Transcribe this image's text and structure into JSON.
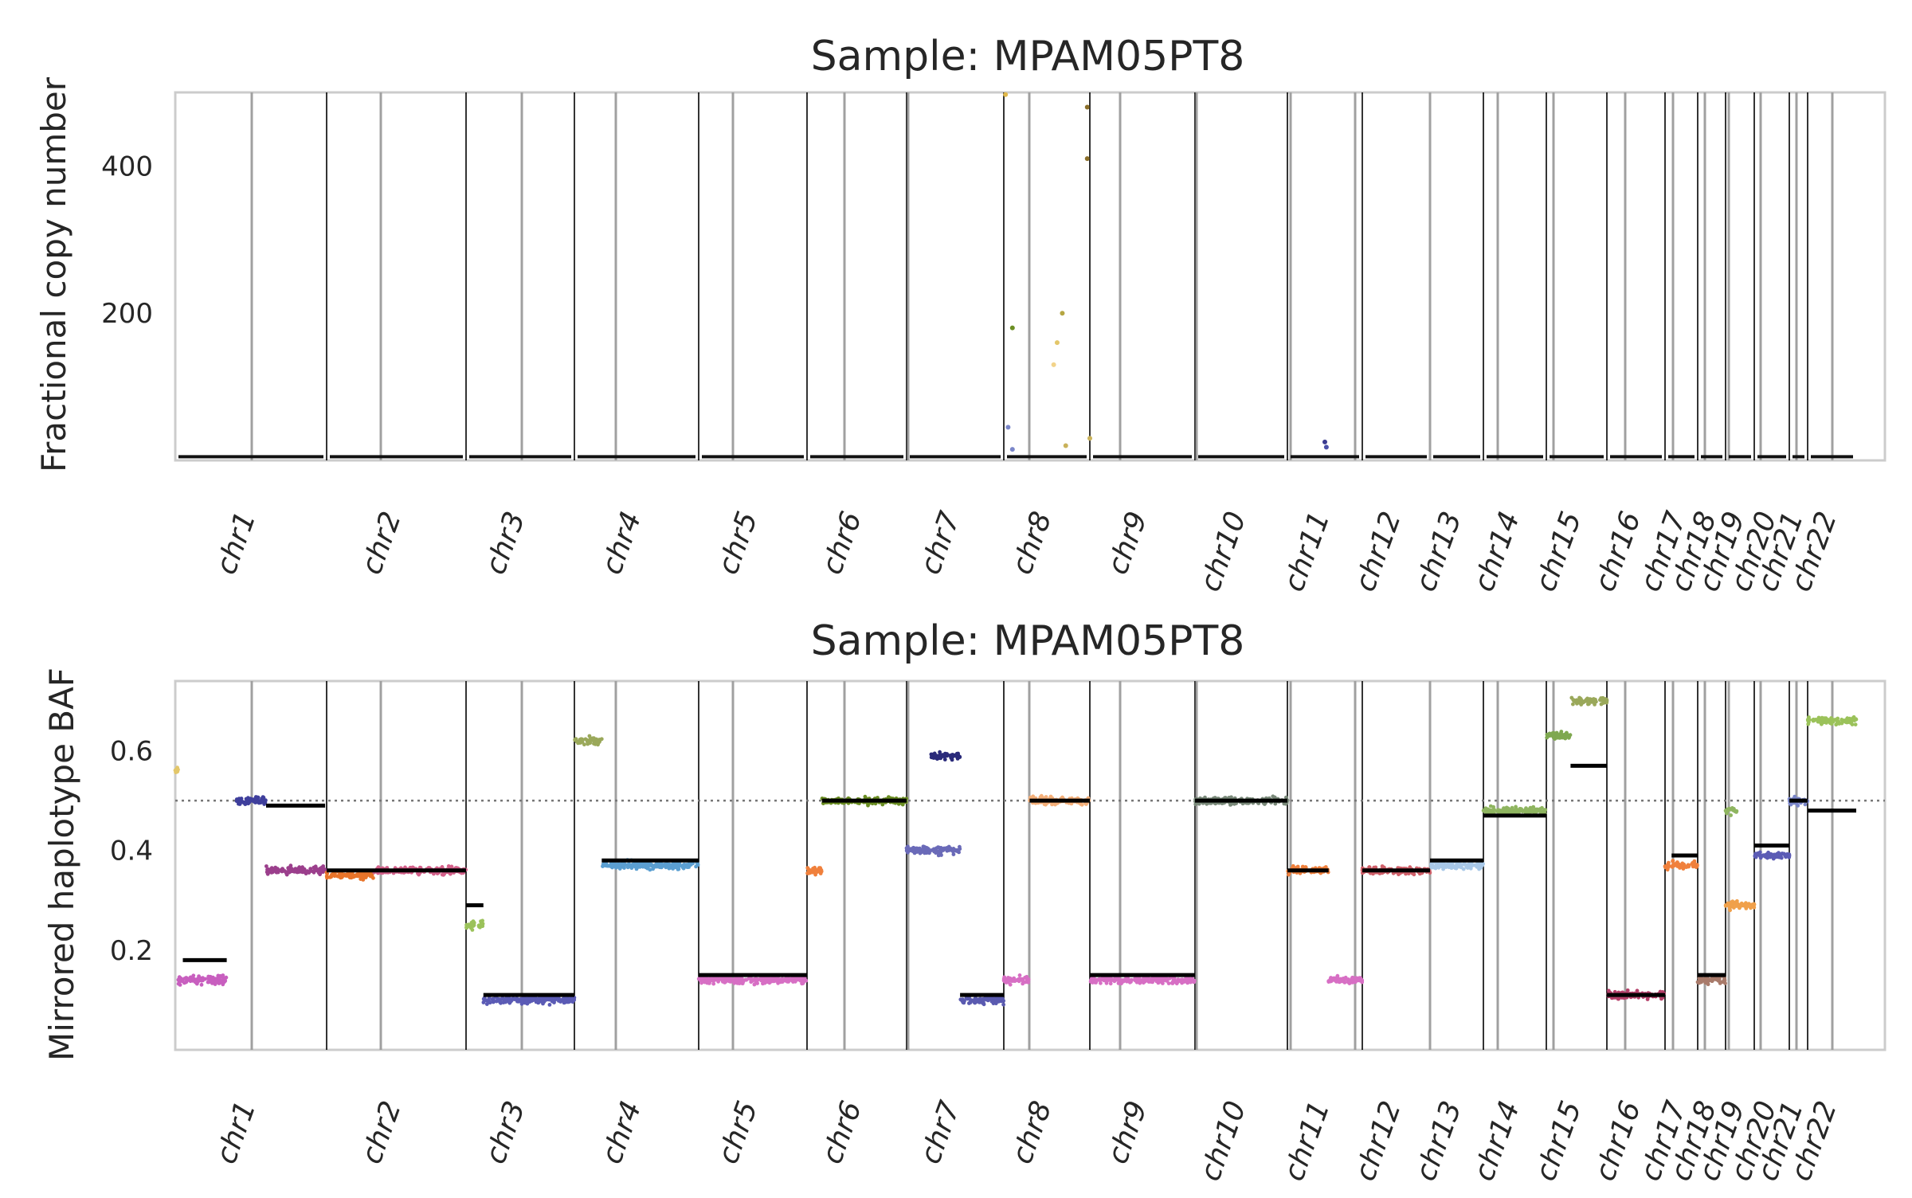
{
  "chart_data": [
    {
      "type": "scatter",
      "title": "Sample: MPAM05PT8",
      "xlabel": "",
      "ylabel": "Fractional copy number",
      "ylim": [
        0,
        500
      ],
      "yticks": [
        200,
        400
      ],
      "grid": false,
      "chromosomes": [
        "chr1",
        "chr2",
        "chr3",
        "chr4",
        "chr5",
        "chr6",
        "chr7",
        "chr8",
        "chr9",
        "chr10",
        "chr11",
        "chr12",
        "chr13",
        "chr14",
        "chr15",
        "chr16",
        "chr17",
        "chr18",
        "chr19",
        "chr20",
        "chr21",
        "chr22"
      ],
      "baseline_level": 5,
      "outliers": [
        {
          "chrom": "chr8",
          "pos": 0.02,
          "value": 497,
          "color": "#e0b84a"
        },
        {
          "chrom": "chr8",
          "pos": 0.1,
          "value": 180,
          "color": "#6b8e23"
        },
        {
          "chrom": "chr8",
          "pos": 0.68,
          "value": 200,
          "color": "#b5a642"
        },
        {
          "chrom": "chr8",
          "pos": 0.62,
          "value": 160,
          "color": "#e3c76a"
        },
        {
          "chrom": "chr8",
          "pos": 0.58,
          "value": 130,
          "color": "#f2d38a"
        },
        {
          "chrom": "chr8",
          "pos": 0.97,
          "value": 480,
          "color": "#8b6f2a"
        },
        {
          "chrom": "chr8",
          "pos": 0.97,
          "value": 410,
          "color": "#8b6f2a"
        },
        {
          "chrom": "chr8",
          "pos": 0.05,
          "value": 45,
          "color": "#7a86c9"
        },
        {
          "chrom": "chr8",
          "pos": 0.1,
          "value": 15,
          "color": "#7a86c9"
        },
        {
          "chrom": "chr8",
          "pos": 0.72,
          "value": 20,
          "color": "#c9b25a"
        },
        {
          "chrom": "chr8",
          "pos": 1.0,
          "value": 30,
          "color": "#c9b25a"
        },
        {
          "chrom": "chr11",
          "pos": 0.5,
          "value": 25,
          "color": "#3b3b8f"
        },
        {
          "chrom": "chr11",
          "pos": 0.52,
          "value": 18,
          "color": "#4a4fa8"
        }
      ]
    },
    {
      "type": "scatter",
      "title": "Sample: MPAM05PT8",
      "xlabel": "",
      "ylabel": "Mirrored haplotype BAF",
      "ylim": [
        0,
        0.74
      ],
      "yticks": [
        0.2,
        0.4,
        0.6
      ],
      "reference_line": 0.5,
      "grid": false,
      "chromosomes": [
        "chr1",
        "chr2",
        "chr3",
        "chr4",
        "chr5",
        "chr6",
        "chr7",
        "chr8",
        "chr9",
        "chr10",
        "chr11",
        "chr12",
        "chr13",
        "chr14",
        "chr15",
        "chr16",
        "chr17",
        "chr18",
        "chr19",
        "chr20",
        "chr21",
        "chr22"
      ],
      "segments": [
        {
          "chrom": "chr1",
          "start": 0.0,
          "end": 0.02,
          "value": 0.56,
          "color": "#e3c76a"
        },
        {
          "chrom": "chr1",
          "start": 0.02,
          "end": 0.34,
          "value": 0.14,
          "color": "#c85fbf"
        },
        {
          "chrom": "chr1",
          "start": 0.4,
          "end": 0.6,
          "value": 0.5,
          "color": "#3f3f9c"
        },
        {
          "chrom": "chr1",
          "start": 0.6,
          "end": 0.99,
          "value": 0.36,
          "color": "#9b3f8c"
        },
        {
          "chrom": "chr2",
          "start": 0.0,
          "end": 0.34,
          "value": 0.35,
          "color": "#e8742a"
        },
        {
          "chrom": "chr2",
          "start": 0.34,
          "end": 1.0,
          "value": 0.36,
          "color": "#d4608a"
        },
        {
          "chrom": "chr3",
          "start": 0.0,
          "end": 0.16,
          "value": 0.25,
          "color": "#9bc25a"
        },
        {
          "chrom": "chr3",
          "start": 0.16,
          "end": 1.0,
          "value": 0.1,
          "color": "#5b5bb5"
        },
        {
          "chrom": "chr4",
          "start": 0.0,
          "end": 0.22,
          "value": 0.62,
          "color": "#9aa85a"
        },
        {
          "chrom": "chr4",
          "start": 0.22,
          "end": 1.0,
          "value": 0.37,
          "color": "#5b9fd1"
        },
        {
          "chrom": "chr5",
          "start": 0.0,
          "end": 1.0,
          "value": 0.14,
          "color": "#d76fc4"
        },
        {
          "chrom": "chr6",
          "start": 0.0,
          "end": 0.15,
          "value": 0.36,
          "color": "#f0803c"
        },
        {
          "chrom": "chr6",
          "start": 0.15,
          "end": 1.0,
          "value": 0.5,
          "color": "#6b8e23"
        },
        {
          "chrom": "chr7",
          "start": 0.0,
          "end": 0.55,
          "value": 0.4,
          "color": "#6a6ab8"
        },
        {
          "chrom": "chr7",
          "start": 0.25,
          "end": 0.55,
          "value": 0.59,
          "color": "#2a2a7a"
        },
        {
          "chrom": "chr7",
          "start": 0.55,
          "end": 1.0,
          "value": 0.1,
          "color": "#5a5ab0"
        },
        {
          "chrom": "chr8",
          "start": 0.0,
          "end": 0.3,
          "value": 0.14,
          "color": "#d76fc4"
        },
        {
          "chrom": "chr8",
          "start": 0.3,
          "end": 1.0,
          "value": 0.5,
          "color": "#f5b07a"
        },
        {
          "chrom": "chr9",
          "start": 0.0,
          "end": 1.0,
          "value": 0.14,
          "color": "#d76fc4"
        },
        {
          "chrom": "chr10",
          "start": 0.0,
          "end": 1.0,
          "value": 0.5,
          "color": "#7a8a7a"
        },
        {
          "chrom": "chr11",
          "start": 0.0,
          "end": 0.55,
          "value": 0.36,
          "color": "#f0803c"
        },
        {
          "chrom": "chr11",
          "start": 0.55,
          "end": 1.0,
          "value": 0.14,
          "color": "#d76fc4"
        },
        {
          "chrom": "chr12",
          "start": 0.0,
          "end": 1.0,
          "value": 0.36,
          "color": "#d0606a"
        },
        {
          "chrom": "chr13",
          "start": 0.0,
          "end": 1.0,
          "value": 0.37,
          "color": "#a8c8e8"
        },
        {
          "chrom": "chr14",
          "start": 0.0,
          "end": 1.0,
          "value": 0.48,
          "color": "#8fb560"
        },
        {
          "chrom": "chr15",
          "start": 0.0,
          "end": 0.4,
          "value": 0.63,
          "color": "#7fa850"
        },
        {
          "chrom": "chr15",
          "start": 0.4,
          "end": 1.0,
          "value": 0.7,
          "color": "#9aa85a"
        },
        {
          "chrom": "chr16",
          "start": 0.0,
          "end": 1.0,
          "value": 0.11,
          "color": "#b5406a"
        },
        {
          "chrom": "chr17",
          "start": 0.0,
          "end": 1.0,
          "value": 0.37,
          "color": "#f0803c"
        },
        {
          "chrom": "chr18",
          "start": 0.0,
          "end": 1.0,
          "value": 0.14,
          "color": "#a87a6a"
        },
        {
          "chrom": "chr19",
          "start": 0.0,
          "end": 1.0,
          "value": 0.29,
          "color": "#f0a04a"
        },
        {
          "chrom": "chr19",
          "start": 0.0,
          "end": 0.4,
          "value": 0.48,
          "color": "#8fb560"
        },
        {
          "chrom": "chr20",
          "start": 0.0,
          "end": 1.0,
          "value": 0.39,
          "color": "#5b5bb5"
        },
        {
          "chrom": "chr21",
          "start": 0.0,
          "end": 1.0,
          "value": 0.5,
          "color": "#7a86c9"
        },
        {
          "chrom": "chr22",
          "start": 0.0,
          "end": 1.0,
          "value": 0.66,
          "color": "#9bc25a"
        }
      ],
      "calls": [
        {
          "chrom": "chr1",
          "start": 0.05,
          "end": 0.34,
          "value": 0.18
        },
        {
          "chrom": "chr1",
          "start": 0.6,
          "end": 0.99,
          "value": 0.49
        },
        {
          "chrom": "chr2",
          "start": 0.0,
          "end": 1.0,
          "value": 0.36
        },
        {
          "chrom": "chr3",
          "start": 0.0,
          "end": 0.16,
          "value": 0.29
        },
        {
          "chrom": "chr3",
          "start": 0.16,
          "end": 1.0,
          "value": 0.11
        },
        {
          "chrom": "chr4",
          "start": 0.22,
          "end": 1.0,
          "value": 0.38
        },
        {
          "chrom": "chr5",
          "start": 0.0,
          "end": 1.0,
          "value": 0.15
        },
        {
          "chrom": "chr6",
          "start": 0.15,
          "end": 1.0,
          "value": 0.5
        },
        {
          "chrom": "chr7",
          "start": 0.55,
          "end": 1.0,
          "value": 0.11
        },
        {
          "chrom": "chr8",
          "start": 0.3,
          "end": 1.0,
          "value": 0.5
        },
        {
          "chrom": "chr9",
          "start": 0.0,
          "end": 1.0,
          "value": 0.15
        },
        {
          "chrom": "chr10",
          "start": 0.0,
          "end": 1.0,
          "value": 0.5
        },
        {
          "chrom": "chr11",
          "start": 0.0,
          "end": 0.55,
          "value": 0.36
        },
        {
          "chrom": "chr12",
          "start": 0.0,
          "end": 1.0,
          "value": 0.36
        },
        {
          "chrom": "chr13",
          "start": 0.0,
          "end": 1.0,
          "value": 0.38
        },
        {
          "chrom": "chr14",
          "start": 0.0,
          "end": 1.0,
          "value": 0.47
        },
        {
          "chrom": "chr15",
          "start": 0.4,
          "end": 1.0,
          "value": 0.57
        },
        {
          "chrom": "chr16",
          "start": 0.0,
          "end": 1.0,
          "value": 0.11
        },
        {
          "chrom": "chr17",
          "start": 0.2,
          "end": 1.0,
          "value": 0.39
        },
        {
          "chrom": "chr18",
          "start": 0.0,
          "end": 1.0,
          "value": 0.15
        },
        {
          "chrom": "chr20",
          "start": 0.0,
          "end": 1.0,
          "value": 0.41
        },
        {
          "chrom": "chr21",
          "start": 0.0,
          "end": 1.0,
          "value": 0.5
        },
        {
          "chrom": "chr22",
          "start": 0.0,
          "end": 1.0,
          "value": 0.48
        }
      ]
    }
  ]
}
